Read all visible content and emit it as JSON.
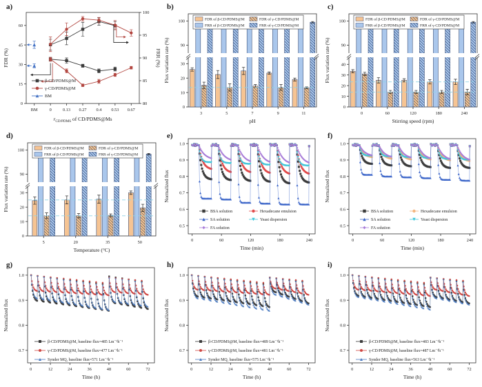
{
  "figure_title": "Membrane antifouling performance figure",
  "colors": {
    "axis": "#333333",
    "orange_bar": "#f6c493",
    "blue_bar": "#aac7ec",
    "bar_edge": "#3a4f78",
    "hatch_orange": "#5a5a5a",
    "hatch_blue": "#2f4a7a",
    "ref_dash": "#90d2e6",
    "beta_black": "#3b3b3b",
    "gamma_darkred": "#b2453f",
    "bm_blue": "#4472c4",
    "bm_tick": "#5ba3d0",
    "red": "#e14b4b",
    "sa_blue": "#3a64c8",
    "yeast_cyan": "#3fc6da",
    "fa_purple": "#a87cd8",
    "hex_orange": "#f4b57e",
    "lt_red": "#cf4743",
    "lt_blue": "#4a7ac0"
  },
  "chart_data": [
    {
      "id": "a",
      "label": "a)",
      "type": "line",
      "xlabel_parts": {
        "pre": "r",
        "sub": "CD/PDMS",
        "post": " of CD/PDMS@Ms"
      },
      "ylabel_left": "FDR (%)",
      "ylabel_right": "FRR (%)",
      "x_tick_labels": [
        "BM",
        "0",
        "0.13",
        "0.27",
        "0.4",
        "0.53",
        "0.67"
      ],
      "yleft_ticks": [
        0,
        15,
        30,
        45,
        60
      ],
      "yleft_range": [
        0,
        70
      ],
      "yright_ticks": [
        80,
        85,
        90,
        95,
        100
      ],
      "yright_range": [
        80,
        100
      ],
      "legend": [
        "β-CD/PDMS@M",
        "γ-CD/PDMS@M",
        "BM"
      ],
      "series": [
        {
          "name": "β-CD/PDMS@M",
          "colorKey": "beta_black",
          "marker": "square",
          "slots": [
            1,
            2,
            3,
            4,
            5
          ],
          "fdr": [
            34,
            33,
            29,
            25,
            26.5
          ],
          "fdr_err": [
            1.5,
            2,
            1.2,
            1.5,
            1.5
          ],
          "frr": [
            92.9,
            94.3,
            96.3,
            98.0,
            97.1
          ],
          "frr_err": [
            1.2,
            1.4,
            1.5,
            0.8,
            0.9
          ]
        },
        {
          "name": "γ-CD/PDMS@M",
          "colorKey": "gamma_darkred",
          "marker": "circle",
          "slots": [
            1,
            2,
            3,
            4,
            5,
            6
          ],
          "fdr": [
            34,
            25,
            14,
            17,
            22,
            27.5
          ],
          "fdr_err": [
            1.5,
            1.5,
            1,
            1.5,
            1.2,
            1
          ],
          "frr": [
            93,
            96.3,
            98.6,
            98.3,
            97.2,
            95.5
          ],
          "frr_err": [
            1.6,
            1.4,
            0.5,
            0.6,
            1.0,
            0.7
          ]
        }
      ],
      "bm": {
        "name": "BM",
        "colorKey": "bm_blue",
        "marker": "triangle",
        "slot": 0,
        "fdr": 29,
        "fdr_err": 1.6,
        "frr": 92.9,
        "frr_err": 0.8
      }
    },
    {
      "id": "b",
      "label": "b)",
      "type": "bar",
      "xlabel": "pH",
      "ylabel": "Flux variation rate (%)",
      "categories": [
        "3",
        "5",
        "7",
        "9",
        "11"
      ],
      "lower_ticks": [
        0,
        10,
        20,
        30
      ],
      "lower_max": 34,
      "upper_ticks": [
        90,
        100
      ],
      "upper_range": [
        87,
        103
      ],
      "ref_lines": [
        13.5
      ],
      "legend": [
        "FDR of β-CD/PDMS@M",
        "FRR of β-CD/PDMS@M",
        "FDR of γ-CD/PDMS@M",
        "FRR of γ-CD/PDMS@M"
      ],
      "series": [
        {
          "name": "FDR of β-CD/PDMS@M",
          "fillKey": "orange_bar",
          "hatch": false,
          "values": [
            26,
            22.5,
            25,
            23.5,
            19
          ],
          "err": [
            1.2,
            2.8,
            2.5,
            0.8,
            1.0
          ]
        },
        {
          "name": "FRR of β-CD/PDMS@M",
          "fillKey": "blue_bar",
          "hatch": false,
          "values": [
            98,
            99,
            99,
            99.3,
            99.3
          ],
          "err": [
            0.4,
            0.3,
            0.5,
            0.3,
            0.4
          ]
        },
        {
          "name": "FDR of γ-CD/PDMS@M",
          "fillKey": "orange_bar",
          "hatch": true,
          "values": [
            15,
            13.5,
            14.5,
            13.5,
            13.3
          ],
          "err": [
            2.2,
            2.5,
            1.0,
            2.0,
            0.6
          ]
        },
        {
          "name": "FRR of γ-CD/PDMS@M",
          "fillKey": "blue_bar",
          "hatch": true,
          "values": [
            98.5,
            99.5,
            99.5,
            99.5,
            99.5
          ],
          "err": [
            0.4,
            0.3,
            0.4,
            0.3,
            0.3
          ]
        }
      ]
    },
    {
      "id": "c",
      "label": "c)",
      "type": "bar",
      "xlabel": "Stirring speed (rpm)",
      "ylabel": "Flux variation rate (%)",
      "categories": [
        "0",
        "60",
        "120",
        "180",
        "240"
      ],
      "lower_ticks": [
        0,
        10,
        20,
        30,
        40
      ],
      "lower_max": 46,
      "upper_ticks": [
        90,
        100
      ],
      "upper_range": [
        87,
        103
      ],
      "ref_lines": [
        23.5,
        14
      ],
      "legend": [
        "FDR of β-CD/PDMS@M",
        "FRR of β-CD/PDMS@M",
        "FDR of γ-CD/PDMS@M",
        "FRR of γ-CD/PDMS@M"
      ],
      "series": [
        {
          "name": "FDR of β-CD/PDMS@M",
          "fillKey": "orange_bar",
          "hatch": false,
          "values": [
            33.5,
            25,
            25,
            23.5,
            23.5
          ],
          "err": [
            1.5,
            2.5,
            1.5,
            2.0,
            2.5
          ]
        },
        {
          "name": "FRR of β-CD/PDMS@M",
          "fillKey": "blue_bar",
          "hatch": false,
          "values": [
            98.5,
            99,
            98.5,
            99.3,
            99.3
          ],
          "err": [
            0.4,
            0.5,
            0.4,
            0.3,
            0.3
          ]
        },
        {
          "name": "FDR of γ-CD/PDMS@M",
          "fillKey": "orange_bar",
          "hatch": true,
          "values": [
            31,
            14,
            14,
            14,
            14
          ],
          "err": [
            1.5,
            1.5,
            1.5,
            1.5,
            2.5
          ]
        },
        {
          "name": "FRR of γ-CD/PDMS@M",
          "fillKey": "blue_bar",
          "hatch": true,
          "values": [
            99,
            99.7,
            100,
            99.3,
            99.5
          ],
          "err": [
            0.3,
            0.3,
            0.3,
            0.3,
            0.3
          ]
        }
      ]
    },
    {
      "id": "d",
      "label": "d)",
      "type": "bar",
      "xlabel": "Temperature (°C)",
      "ylabel": "Flux variation rate (%)",
      "categories": [
        "5",
        "20",
        "35",
        "50"
      ],
      "lower_ticks": [
        0,
        10,
        20,
        30
      ],
      "lower_max": 34,
      "upper_ticks": [
        90,
        100
      ],
      "upper_range": [
        87,
        103
      ],
      "ref_lines": [
        25,
        14
      ],
      "legend": [
        "FDR of β-CD/PDMS@M",
        "FRR of β-CD/PDMS@M",
        "FDR of γ-CD/PDMS@M",
        "FRR of γ-CD/PDMS@M"
      ],
      "series": [
        {
          "name": "FDR of β-CD/PDMS@M",
          "fillKey": "orange_bar",
          "hatch": false,
          "values": [
            24.5,
            25,
            25.5,
            30
          ],
          "err": [
            2.5,
            2.8,
            2.8,
            1.2
          ]
        },
        {
          "name": "FRR of β-CD/PDMS@M",
          "fillKey": "blue_bar",
          "hatch": false,
          "values": [
            99,
            99.2,
            98.5,
            97.5
          ],
          "err": [
            0.3,
            0.4,
            0.4,
            0.4
          ]
        },
        {
          "name": "FDR of γ-CD/PDMS@M",
          "fillKey": "orange_bar",
          "hatch": true,
          "values": [
            14,
            14,
            14.3,
            19.5
          ],
          "err": [
            2.0,
            1.5,
            1.0,
            2.5
          ]
        },
        {
          "name": "FRR of γ-CD/PDMS@M",
          "fillKey": "blue_bar",
          "hatch": true,
          "values": [
            99.3,
            99.8,
            99.3,
            98.3
          ],
          "err": [
            0.3,
            0.2,
            0.3,
            0.3
          ]
        }
      ]
    },
    {
      "id": "e",
      "label": "e)",
      "type": "line-cycles",
      "xlabel": "Time (min)",
      "ylabel": "Normalized flux",
      "x_ticks": [
        0,
        60,
        120,
        180,
        240
      ],
      "y_ticks": [
        0.5,
        0.6,
        0.7,
        0.8,
        0.9,
        1.0
      ],
      "y_range": [
        0.45,
        1.03
      ],
      "cycles": 6,
      "cycle_minutes": 40,
      "peak": 0.99,
      "series": [
        {
          "name": "BSA solution",
          "colorKey": "beta_black",
          "marker": "square",
          "tau": 6,
          "minima": [
            0.78,
            0.775,
            0.77,
            0.765,
            0.755,
            0.76
          ]
        },
        {
          "name": "Hexadecane emulsion",
          "colorKey": "red",
          "marker": "circle",
          "tau": 8,
          "minima": [
            0.84,
            0.82,
            0.82,
            0.815,
            0.81,
            0.81
          ]
        },
        {
          "name": "SA solution",
          "colorKey": "sa_blue",
          "marker": "triangle",
          "tau": 1.5,
          "minima": [
            0.665,
            0.66,
            0.64,
            0.635,
            0.63,
            0.63
          ]
        },
        {
          "name": "Yeast dispersion",
          "colorKey": "yeast_cyan",
          "marker": "triangle-down",
          "tau": 4,
          "minima": [
            0.885,
            0.88,
            0.875,
            0.87,
            0.865,
            0.865
          ]
        },
        {
          "name": "FA solution",
          "colorKey": "fa_purple",
          "marker": "diamond",
          "tau": 12,
          "minima": [
            0.9,
            0.89,
            0.88,
            0.875,
            0.87,
            0.87
          ]
        }
      ],
      "legend_cols": [
        [
          "BSA solution",
          "SA solution",
          "FA solution"
        ],
        [
          "Hexadecane emulsion",
          "Yeast dispersion"
        ]
      ]
    },
    {
      "id": "f",
      "label": "f)",
      "type": "line-cycles",
      "xlabel": "Time (min)",
      "ylabel": "Normalized flux",
      "x_ticks": [
        0,
        60,
        120,
        180,
        240
      ],
      "y_ticks": [
        0.5,
        0.6,
        0.7,
        0.8,
        0.9,
        1.0
      ],
      "y_range": [
        0.45,
        1.03
      ],
      "cycles": 6,
      "cycle_minutes": 40,
      "peak": 0.99,
      "series": [
        {
          "name": "BSA solution",
          "colorKey": "beta_black",
          "marker": "square",
          "tau": 6,
          "minima": [
            0.875,
            0.865,
            0.86,
            0.855,
            0.85,
            0.85
          ]
        },
        {
          "name": "Hexadecane emulsion",
          "colorKey": "hex_orange",
          "marker": "circle",
          "tau": 8,
          "minima": [
            0.915,
            0.905,
            0.9,
            0.9,
            0.895,
            0.89
          ]
        },
        {
          "name": "SA solution",
          "colorKey": "sa_blue",
          "marker": "triangle",
          "tau": 2,
          "minima": [
            0.81,
            0.8,
            0.795,
            0.79,
            0.78,
            0.775
          ]
        },
        {
          "name": "Yeast dispersion",
          "colorKey": "yeast_cyan",
          "marker": "triangle-down",
          "tau": 4,
          "minima": [
            0.925,
            0.92,
            0.915,
            0.91,
            0.905,
            0.9
          ]
        },
        {
          "name": "FA solution",
          "colorKey": "fa_purple",
          "marker": "diamond",
          "tau": 12,
          "minima": [
            0.92,
            0.91,
            0.905,
            0.9,
            0.895,
            0.89
          ]
        }
      ],
      "legend_cols": [
        [
          "BSA solution",
          "SA solution",
          "FA solution"
        ],
        [
          "Hexadecane emulsion",
          "Yeast dispersion"
        ]
      ]
    },
    {
      "id": "g",
      "label": "g)",
      "type": "line-longterm",
      "xlabel": "Time (h)",
      "ylabel": "Normalized flux",
      "x_ticks": [
        0,
        12,
        24,
        36,
        48,
        60,
        72
      ],
      "y_ticks": [
        0.7,
        0.8,
        0.9,
        1.0
      ],
      "y_range": [
        0.65,
        1.03
      ],
      "cycles": 18,
      "cycle_hours": 4,
      "reset_at": 48,
      "series": [
        {
          "name": "β-CD/PDMS@M, baseline flux=485 Lm⁻²h⁻¹",
          "colorKey": "beta_black",
          "marker": "square",
          "peaks": [
            1.0,
            0.965,
            0.995,
            0.975
          ],
          "troughs": [
            0.895,
            0.855,
            0.885,
            0.862
          ]
        },
        {
          "name": "γ-CD/PDMS@M, baseline flux=477 Lm⁻²h⁻¹",
          "colorKey": "lt_red",
          "marker": "circle",
          "peaks": [
            1.0,
            0.97,
            0.99,
            0.978
          ],
          "troughs": [
            0.935,
            0.918,
            0.93,
            0.92
          ]
        },
        {
          "name": "Synder MQ, baseline flux=571 Lm⁻²h⁻¹",
          "colorKey": "lt_blue",
          "marker": "triangle",
          "peaks": [
            1.0,
            0.96,
            0.99,
            0.972
          ],
          "troughs": [
            0.905,
            0.858,
            0.89,
            0.872
          ]
        }
      ]
    },
    {
      "id": "h",
      "label": "h)",
      "type": "line-longterm",
      "xlabel": "Time (h)",
      "ylabel": "Normalized flux",
      "x_ticks": [
        0,
        12,
        24,
        36,
        48,
        60,
        72
      ],
      "y_ticks": [
        0.7,
        0.8,
        0.9,
        1.0
      ],
      "y_range": [
        0.65,
        1.03
      ],
      "cycles": 18,
      "cycle_hours": 4,
      "reset_at": 48,
      "series": [
        {
          "name": "β-CD/PDMS@M, baseline flux=489 Lm⁻²h⁻¹",
          "colorKey": "beta_black",
          "marker": "square",
          "peaks": [
            1.0,
            0.965,
            0.99,
            0.975
          ],
          "troughs": [
            0.912,
            0.87,
            0.93,
            0.885
          ]
        },
        {
          "name": "γ-CD/PDMS@M, baseline flux=481 Lm⁻²h⁻¹",
          "colorKey": "lt_red",
          "marker": "circle",
          "peaks": [
            1.0,
            0.97,
            0.99,
            0.978
          ],
          "troughs": [
            0.94,
            0.92,
            0.945,
            0.92
          ]
        },
        {
          "name": "Synder MQ, baseline flux=575 Lm⁻²h⁻¹",
          "colorKey": "lt_blue",
          "marker": "triangle",
          "peaks": [
            1.0,
            0.96,
            0.99,
            0.972
          ],
          "troughs": [
            0.905,
            0.855,
            0.92,
            0.88
          ]
        }
      ]
    },
    {
      "id": "i",
      "label": "i)",
      "type": "line-longterm",
      "xlabel": "Time (h)",
      "ylabel": "Normalized flux",
      "x_ticks": [
        0,
        12,
        24,
        36,
        48,
        60,
        72
      ],
      "y_ticks": [
        0.7,
        0.8,
        0.9,
        1.0
      ],
      "y_range": [
        0.65,
        1.03
      ],
      "cycles": 18,
      "cycle_hours": 4,
      "reset_at": 48,
      "series": [
        {
          "name": "β-CD/PDMS@M, baseline flux=483 Lm⁻²h⁻¹",
          "colorKey": "beta_black",
          "marker": "square",
          "peaks": [
            1.0,
            0.965,
            0.99,
            0.975
          ],
          "troughs": [
            0.915,
            0.87,
            0.91,
            0.885
          ]
        },
        {
          "name": "γ-CD/PDMS@M, baseline flux=487 Lm⁻²h⁻¹",
          "colorKey": "lt_red",
          "marker": "circle",
          "peaks": [
            1.0,
            0.97,
            0.99,
            0.978
          ],
          "troughs": [
            0.94,
            0.915,
            0.94,
            0.915
          ]
        },
        {
          "name": "Synder MQ, baseline flux=563 Lm⁻²h⁻¹",
          "colorKey": "lt_blue",
          "marker": "triangle",
          "peaks": [
            1.0,
            0.96,
            0.99,
            0.972
          ],
          "troughs": [
            0.91,
            0.86,
            0.905,
            0.88
          ]
        }
      ]
    }
  ]
}
